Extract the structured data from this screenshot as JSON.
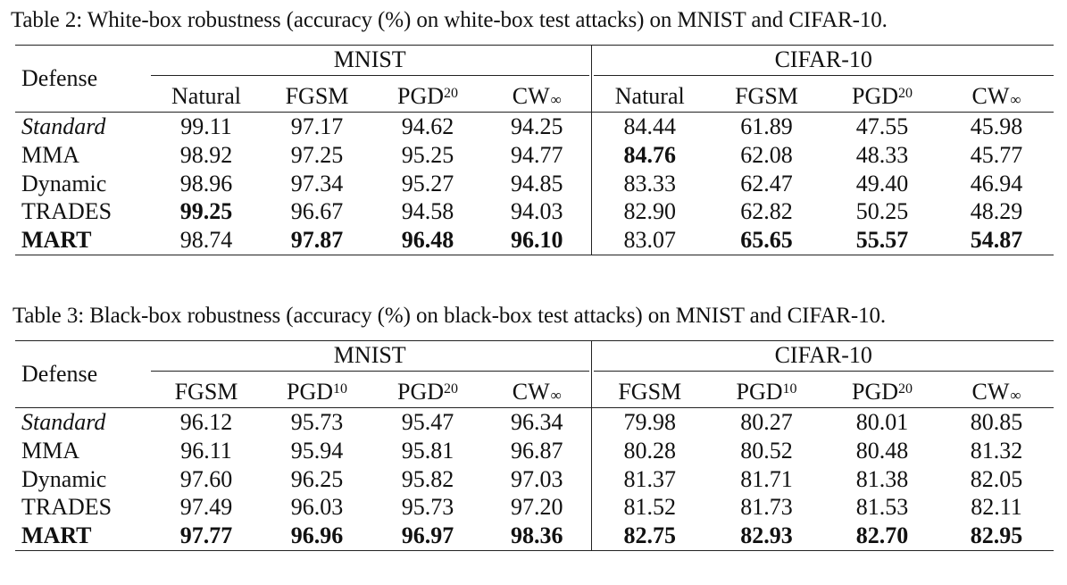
{
  "table2": {
    "caption": "Table 2: White-box robustness (accuracy (%) on white-box test attacks) on MNIST and CIFAR-10.",
    "defense_header": "Defense",
    "groups": [
      "MNIST",
      "CIFAR-10"
    ],
    "columns": [
      {
        "base": "Natural",
        "sup": "",
        "sub": ""
      },
      {
        "base": "FGSM",
        "sup": "",
        "sub": ""
      },
      {
        "base": "PGD",
        "sup": "20",
        "sub": ""
      },
      {
        "base": "CW",
        "sup": "",
        "sub": "∞"
      },
      {
        "base": "Natural",
        "sup": "",
        "sub": ""
      },
      {
        "base": "FGSM",
        "sup": "",
        "sub": ""
      },
      {
        "base": "PGD",
        "sup": "20",
        "sub": ""
      },
      {
        "base": "CW",
        "sup": "",
        "sub": "∞"
      }
    ],
    "rows": [
      {
        "name": "Standard",
        "italic": true,
        "bold_name": false,
        "values": [
          "99.11",
          "97.17",
          "94.62",
          "94.25",
          "84.44",
          "61.89",
          "47.55",
          "45.98"
        ],
        "bold": [
          false,
          false,
          false,
          false,
          false,
          false,
          false,
          false
        ]
      },
      {
        "name": "MMA",
        "italic": false,
        "bold_name": false,
        "values": [
          "98.92",
          "97.25",
          "95.25",
          "94.77",
          "84.76",
          "62.08",
          "48.33",
          "45.77"
        ],
        "bold": [
          false,
          false,
          false,
          false,
          true,
          false,
          false,
          false
        ]
      },
      {
        "name": "Dynamic",
        "italic": false,
        "bold_name": false,
        "values": [
          "98.96",
          "97.34",
          "95.27",
          "94.85",
          "83.33",
          "62.47",
          "49.40",
          "46.94"
        ],
        "bold": [
          false,
          false,
          false,
          false,
          false,
          false,
          false,
          false
        ]
      },
      {
        "name": "TRADES",
        "italic": false,
        "bold_name": false,
        "values": [
          "99.25",
          "96.67",
          "94.58",
          "94.03",
          "82.90",
          "62.82",
          "50.25",
          "48.29"
        ],
        "bold": [
          true,
          false,
          false,
          false,
          false,
          false,
          false,
          false
        ]
      },
      {
        "name": "MART",
        "italic": false,
        "bold_name": true,
        "values": [
          "98.74",
          "97.87",
          "96.48",
          "96.10",
          "83.07",
          "65.65",
          "55.57",
          "54.87"
        ],
        "bold": [
          false,
          true,
          true,
          true,
          false,
          true,
          true,
          true
        ]
      }
    ]
  },
  "table3": {
    "caption": "Table 3: Black-box robustness (accuracy (%) on black-box test attacks) on MNIST and CIFAR-10.",
    "defense_header": "Defense",
    "groups": [
      "MNIST",
      "CIFAR-10"
    ],
    "columns": [
      {
        "base": "FGSM",
        "sup": "",
        "sub": ""
      },
      {
        "base": "PGD",
        "sup": "10",
        "sub": ""
      },
      {
        "base": "PGD",
        "sup": "20",
        "sub": ""
      },
      {
        "base": "CW",
        "sup": "",
        "sub": "∞"
      },
      {
        "base": "FGSM",
        "sup": "",
        "sub": ""
      },
      {
        "base": "PGD",
        "sup": "10",
        "sub": ""
      },
      {
        "base": "PGD",
        "sup": "20",
        "sub": ""
      },
      {
        "base": "CW",
        "sup": "",
        "sub": "∞"
      }
    ],
    "rows": [
      {
        "name": "Standard",
        "italic": true,
        "bold_name": false,
        "values": [
          "96.12",
          "95.73",
          "95.47",
          "96.34",
          "79.98",
          "80.27",
          "80.01",
          "80.85"
        ],
        "bold": [
          false,
          false,
          false,
          false,
          false,
          false,
          false,
          false
        ]
      },
      {
        "name": "MMA",
        "italic": false,
        "bold_name": false,
        "values": [
          "96.11",
          "95.94",
          "95.81",
          "96.87",
          "80.28",
          "80.52",
          "80.48",
          "81.32"
        ],
        "bold": [
          false,
          false,
          false,
          false,
          false,
          false,
          false,
          false
        ]
      },
      {
        "name": "Dynamic",
        "italic": false,
        "bold_name": false,
        "values": [
          "97.60",
          "96.25",
          "95.82",
          "97.03",
          "81.37",
          "81.71",
          "81.38",
          "82.05"
        ],
        "bold": [
          false,
          false,
          false,
          false,
          false,
          false,
          false,
          false
        ]
      },
      {
        "name": "TRADES",
        "italic": false,
        "bold_name": false,
        "values": [
          "97.49",
          "96.03",
          "95.73",
          "97.20",
          "81.52",
          "81.73",
          "81.53",
          "82.11"
        ],
        "bold": [
          false,
          false,
          false,
          false,
          false,
          false,
          false,
          false
        ]
      },
      {
        "name": "MART",
        "italic": false,
        "bold_name": true,
        "values": [
          "97.77",
          "96.96",
          "96.97",
          "98.36",
          "82.75",
          "82.93",
          "82.70",
          "82.95"
        ],
        "bold": [
          true,
          true,
          true,
          true,
          true,
          true,
          true,
          true
        ]
      }
    ]
  }
}
